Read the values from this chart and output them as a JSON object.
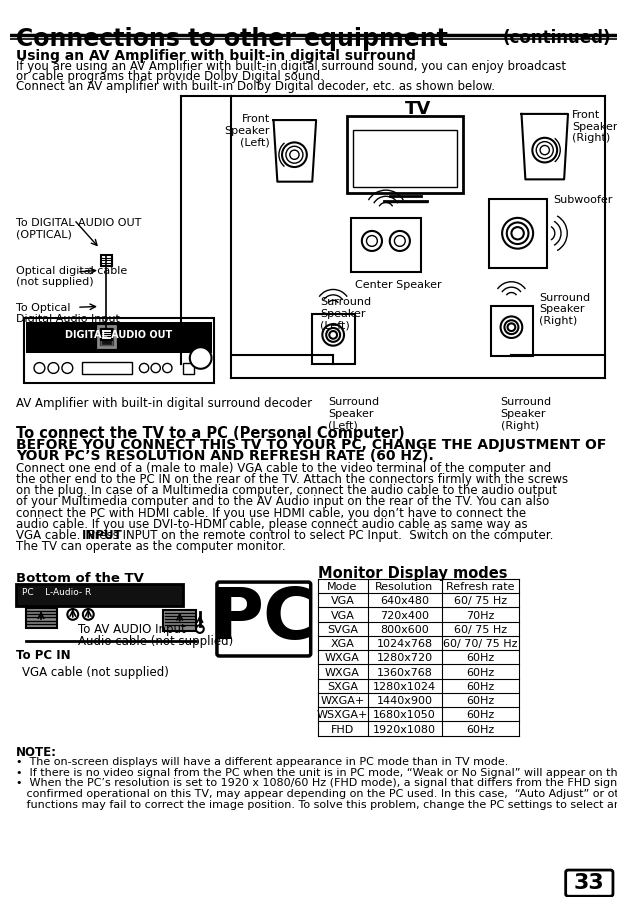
{
  "title": "Connections to other equipment",
  "title_continued": "(continued)",
  "section1_title": "Using an AV Amplifier with built-in digital surround",
  "section1_line1": "If you are using an AV Amplifier with built-in digital surround sound, you can enjoy broadcast",
  "section1_line2": "or cable programs that provide Dolby Digital sound.",
  "section1_line3": "Connect an AV amplifier with built-in Dolby Digital decoder, etc. as shown below.",
  "section2_title": "To connect the TV to a PC (Personal Computer)",
  "section2_warn1": "BEFORE YOU CONNECT THIS TV TO YOUR PC, CHANGE THE ADJUSTMENT OF",
  "section2_warn2": "YOUR PC’S RESOLUTION AND REFRESH RATE (60 HZ).",
  "section2_body_lines": [
    "Connect one end of a (male to male) VGA cable to the video terminal of the computer and",
    "the other end to the PC IN on the rear of the TV. Attach the connectors firmly with the screws",
    "on the plug. In case of a Multimedia computer, connect the audio cable to the audio output",
    "of your Multimedia computer and to the AV Audio input on the rear of the TV. You can also",
    "connect the PC with HDMI cable. If you use HDMI cable, you don’t have to connect the",
    "audio cable. If you use DVI-to-HDMI cable, please connect audio cable as same way as",
    "VGA cable.  Press INPUT on the remote control to select PC Input.  Switch on the computer.",
    "The TV can operate as the computer monitor."
  ],
  "input_bold": "INPUT",
  "monitor_title": "Monitor Display modes",
  "monitor_headers": [
    "Mode",
    "Resolution",
    "Refresh rate"
  ],
  "monitor_rows": [
    [
      "VGA",
      "640x480",
      "60/ 75 Hz"
    ],
    [
      "VGA",
      "720x400",
      "70Hz"
    ],
    [
      "SVGA",
      "800x600",
      "60/ 75 Hz"
    ],
    [
      "XGA",
      "1024x768",
      "60/ 70/ 75 Hz"
    ],
    [
      "WXGA",
      "1280x720",
      "60Hz"
    ],
    [
      "WXGA",
      "1360x768",
      "60Hz"
    ],
    [
      "SXGA",
      "1280x1024",
      "60Hz"
    ],
    [
      "WXGA+",
      "1440x900",
      "60Hz"
    ],
    [
      "WSXGA+",
      "1680x1050",
      "60Hz"
    ],
    [
      "FHD",
      "1920x1080",
      "60Hz"
    ]
  ],
  "bottom_label": "Bottom of the TV",
  "to_av_audio": "To AV AUDIO Input",
  "audio_cable": "Audio cable (not supplied)",
  "vga_cable": "VGA cable (not supplied)",
  "to_pc_in": "To PC IN",
  "pc_text": "PC",
  "note_title": "NOTE:",
  "note1": "The on-screen displays will have a different appearance in PC mode than in TV mode.",
  "note2": "If there is no video signal from the PC when the unit is in PC mode, “Weak or No Signal” will appear on the TV-screen.",
  "note3a": "When the PC’s resolution is set to 1920 x 1080/60 Hz (FHD mode), a signal that differs from the FHD signal, which has been",
  "note3b": "   confirmed operational on this TV, may appear depending on the PC used. In this case,  “Auto Adjust” or other position adjustment",
  "note3c": "   functions may fail to correct the image position. To solve this problem, change the PC settings to select another resolution.",
  "page_number": "33",
  "label_digital_audio": "DIGITAL AUDIO OUT",
  "label_to_digital": "To DIGITAL AUDIO OUT\n(OPTICAL)",
  "label_optical_cable": "Optical digital cable\n(not supplied)",
  "label_to_optical": "To Optical\nDigital Audio Input",
  "label_front_left": "Front\nSpeaker\n(Left)",
  "label_front_right": "Front\nSpeaker\n(Right)",
  "label_center": "Center Speaker",
  "label_subwoofer": "Subwoofer",
  "label_surround_left": "Surround\nSpeaker\n(Left)",
  "label_surround_right": "Surround\nSpeaker\n(Right)",
  "label_tv": "TV",
  "label_av_amp": "AV Amplifier with built-in digital surround decoder",
  "pc_label_strip": "PC    L-Audio- R"
}
